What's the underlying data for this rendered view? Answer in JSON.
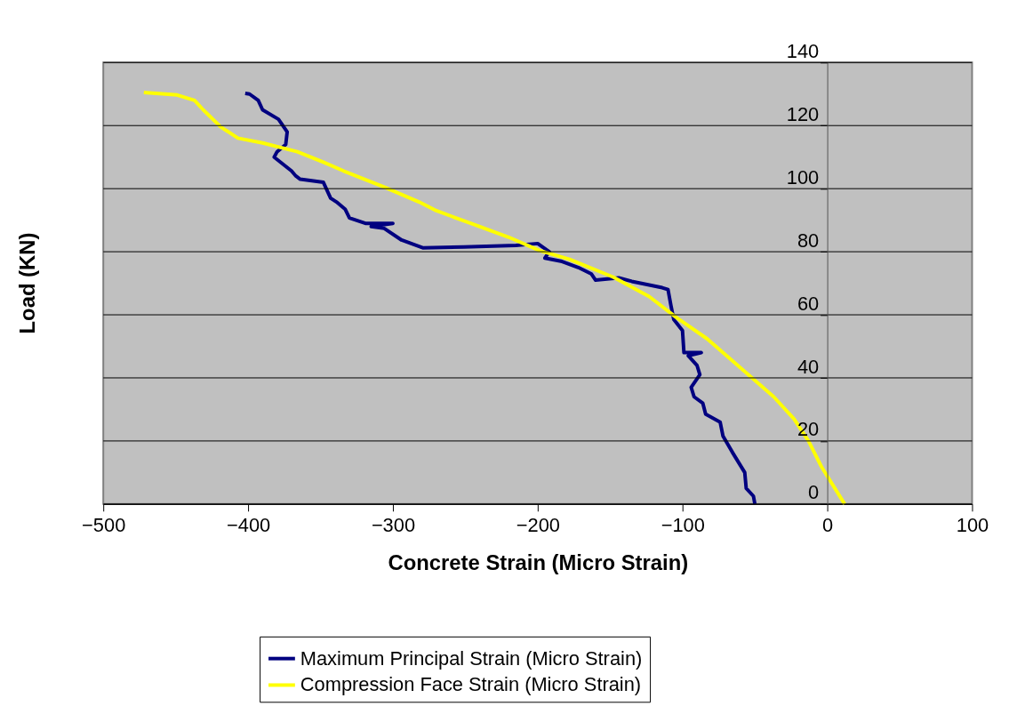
{
  "chart_data": {
    "type": "line",
    "xlabel": "Concrete Strain (Micro Strain)",
    "ylabel": "Load (KN)",
    "xlim": [
      -500,
      100
    ],
    "xticks": [
      -500,
      -400,
      -300,
      -200,
      -100,
      0,
      100
    ],
    "ylim": [
      0,
      140
    ],
    "yticks": [
      0,
      20,
      40,
      60,
      80,
      100,
      120,
      140
    ],
    "grid": "y",
    "legend": "bottom",
    "line_style": "solid",
    "marker": "none",
    "series": [
      {
        "name": "Maximum Principal Strain (Micro Strain)",
        "color": "#000080",
        "x": [
          -50,
          -51,
          -56,
          -57,
          -65,
          -72,
          -74,
          -84,
          -86,
          -92,
          -94,
          -88,
          -90,
          -96,
          -87,
          -99,
          -100,
          -106,
          -108,
          -110,
          -114,
          -135,
          -144,
          -160,
          -163,
          -172,
          -184,
          -195,
          -192,
          -200,
          -215,
          -251,
          -279,
          -294,
          -306,
          -315,
          -300,
          -319,
          -330,
          -333,
          -339,
          -343,
          -348,
          -364,
          -367,
          -370,
          -382,
          -380,
          -374,
          -373,
          -379,
          -390,
          -393,
          -399,
          -402
        ],
        "values": [
          0,
          2.5,
          5,
          10,
          16,
          21.5,
          26,
          28.5,
          32,
          34,
          37,
          41,
          44,
          47,
          48,
          48,
          55,
          58.5,
          63,
          68,
          68.6,
          70.6,
          71.7,
          71,
          73,
          75,
          77,
          78,
          80,
          82.6,
          82,
          81.5,
          81.2,
          83.7,
          87.4,
          88,
          89,
          89,
          90.7,
          93.5,
          95.8,
          97,
          102,
          103,
          104,
          105.6,
          110,
          111.7,
          114,
          118,
          122,
          125,
          128,
          130,
          130.2
        ]
      },
      {
        "name": "Compression Face Strain (Micro Strain)",
        "color": "#ffff00",
        "x": [
          -472,
          -449,
          -437,
          -431,
          -419,
          -407,
          -390,
          -366,
          -348,
          -334,
          -306,
          -282,
          -270,
          -245,
          -220,
          -199,
          -178,
          -148,
          -123,
          -105,
          -83,
          -62,
          -37,
          -23,
          -13,
          -4,
          12
        ],
        "values": [
          130.5,
          129.7,
          128,
          125,
          119.6,
          116,
          114.5,
          111.7,
          108.4,
          105.6,
          100.5,
          95.8,
          93,
          88.8,
          84.6,
          80.4,
          77.6,
          72,
          65.8,
          59.4,
          52.4,
          44,
          34,
          27,
          20,
          11.8,
          0
        ]
      }
    ]
  }
}
